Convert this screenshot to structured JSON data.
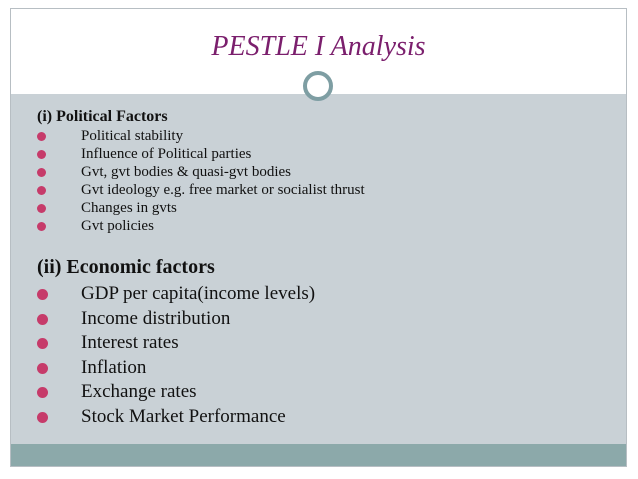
{
  "slide": {
    "title": "PESTLE I Analysis"
  },
  "political": {
    "heading": "(i) Political Factors",
    "items": [
      "Political stability",
      "Influence of Political parties",
      "Gvt, gvt bodies & quasi-gvt bodies",
      "Gvt ideology e.g. free market or socialist thrust",
      "Changes in gvts",
      "Gvt policies"
    ]
  },
  "economic": {
    "heading": "(ii) Economic factors",
    "items": [
      "GDP per capita(income levels)",
      "Income distribution",
      "Interest rates",
      "Inflation",
      "Exchange rates",
      "Stock Market Performance"
    ]
  },
  "colors": {
    "title": "#7b1f6d",
    "bullet": "#c63b6a",
    "background": "#c9d1d6",
    "footer": "#8ca9aa",
    "ring": "#7e9ea3"
  },
  "icons": {
    "bullet": "filled-circle-bullet-icon",
    "ring": "ring-ornament-icon"
  }
}
